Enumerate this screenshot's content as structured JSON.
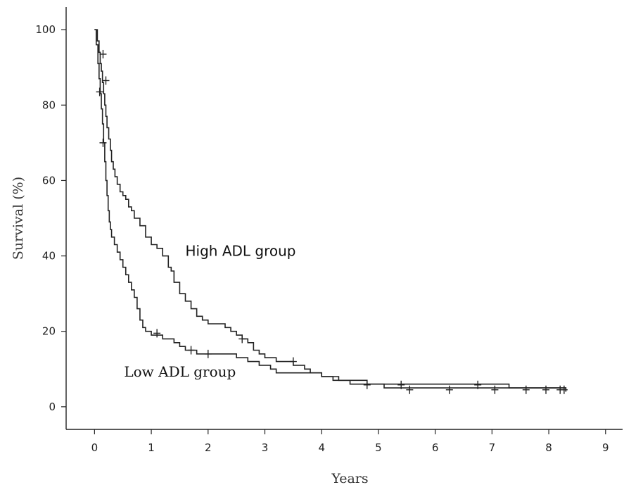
{
  "chart_data": {
    "type": "line",
    "title": "",
    "xlabel": "Years",
    "ylabel": "Survival (%)",
    "xlim": [
      -0.5,
      9.3
    ],
    "ylim": [
      -6,
      106
    ],
    "x_ticks": [
      0,
      1,
      2,
      3,
      4,
      5,
      6,
      7,
      8,
      9
    ],
    "y_ticks": [
      0,
      20,
      40,
      60,
      80,
      100
    ],
    "grid": false,
    "legend": "none",
    "annotations": [
      {
        "id": "high",
        "text": "High ADL group",
        "x": 1.6,
        "y": 40
      },
      {
        "id": "low",
        "text": "Low ADL group",
        "x": 0.52,
        "y": 8
      }
    ],
    "series": [
      {
        "id": "high",
        "x": [
          0,
          0.05,
          0.08,
          0.1,
          0.12,
          0.14,
          0.16,
          0.18,
          0.2,
          0.22,
          0.25,
          0.28,
          0.3,
          0.33,
          0.36,
          0.4,
          0.45,
          0.5,
          0.55,
          0.6,
          0.65,
          0.7,
          0.8,
          0.9,
          1.0,
          1.1,
          1.2,
          1.3,
          1.35,
          1.4,
          1.5,
          1.6,
          1.7,
          1.8,
          1.9,
          2.0,
          2.3,
          2.4,
          2.5,
          2.6,
          2.7,
          2.8,
          2.9,
          3.0,
          3.2,
          3.5,
          3.7,
          3.8,
          4.0,
          4.2,
          4.5,
          4.8,
          5.0,
          7.3,
          8.3
        ],
        "y": [
          100,
          97,
          94,
          91,
          89,
          86,
          83,
          80,
          77,
          74,
          71,
          68,
          65,
          63,
          61,
          59,
          57,
          56,
          55,
          53,
          52,
          50,
          48,
          45,
          43,
          42,
          40,
          37,
          36,
          33,
          30,
          28,
          26,
          24,
          23,
          22,
          21,
          20,
          19,
          18,
          17,
          15,
          14,
          13,
          12,
          11,
          10,
          9,
          8,
          7,
          6,
          6,
          6,
          5,
          4
        ],
        "censored": [
          [
            0.15,
            93.5
          ],
          [
            0.2,
            86.5
          ],
          [
            2.6,
            18
          ],
          [
            3.5,
            12
          ],
          [
            4.8,
            5.8
          ],
          [
            5.4,
            5.8
          ],
          [
            6.75,
            5.8
          ]
        ]
      },
      {
        "id": "low",
        "x": [
          0,
          0.03,
          0.06,
          0.08,
          0.1,
          0.12,
          0.14,
          0.16,
          0.18,
          0.2,
          0.22,
          0.24,
          0.26,
          0.28,
          0.3,
          0.35,
          0.4,
          0.45,
          0.5,
          0.55,
          0.6,
          0.65,
          0.7,
          0.75,
          0.8,
          0.85,
          0.9,
          1.0,
          1.2,
          1.4,
          1.5,
          1.6,
          1.8,
          2.0,
          2.1,
          2.5,
          2.7,
          2.9,
          3.1,
          3.2,
          4.0,
          4.3,
          4.8,
          5.1,
          8.3
        ],
        "y": [
          100,
          96,
          91,
          87,
          83,
          79,
          75,
          70,
          65,
          60,
          56,
          52,
          49,
          47,
          45,
          43,
          41,
          39,
          37,
          35,
          33,
          31,
          29,
          26,
          23,
          21,
          20,
          19,
          18,
          17,
          16,
          15,
          14,
          14,
          14,
          13,
          12,
          11,
          10,
          9,
          8,
          7,
          6,
          5,
          4
        ],
        "censored": [
          [
            0.09,
            83.5
          ],
          [
            0.15,
            70
          ],
          [
            1.1,
            19.5
          ],
          [
            1.7,
            15
          ],
          [
            2.0,
            14
          ],
          [
            5.55,
            4.5
          ],
          [
            6.25,
            4.5
          ],
          [
            7.05,
            4.5
          ],
          [
            7.6,
            4.5
          ],
          [
            7.95,
            4.5
          ],
          [
            8.2,
            4.5
          ],
          [
            8.27,
            4.5
          ]
        ]
      }
    ]
  }
}
